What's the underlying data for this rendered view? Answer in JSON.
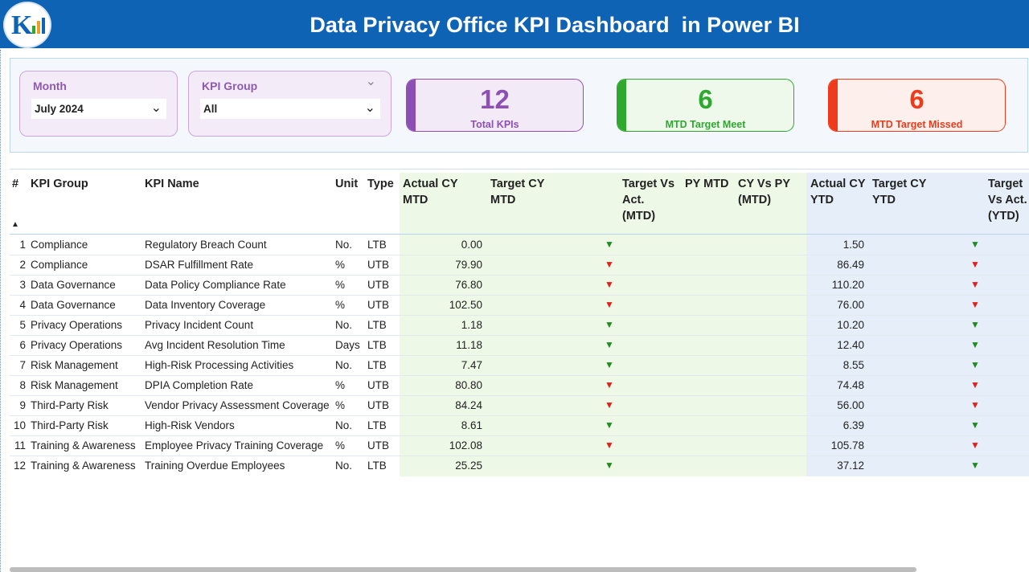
{
  "header": {
    "title": "Data Privacy Office KPI Dashboard  in Power BI"
  },
  "filters": [
    {
      "label": "Month",
      "value": "July 2024"
    },
    {
      "label": "KPI Group",
      "value": "All"
    }
  ],
  "cards": [
    {
      "value": 12,
      "label": "Total KPIs",
      "color": "#8e4fb5",
      "bg": "#f3eaf8"
    },
    {
      "value": 6,
      "label": "MTD Target Meet",
      "color": "#2fa82f",
      "bg": "#eef9ec"
    },
    {
      "value": 6,
      "label": "MTD Target Missed",
      "color": "#ee3b1c",
      "bg": "#fdf0ec"
    }
  ],
  "table": {
    "columns": [
      "#",
      "KPI Group",
      "KPI Name",
      "Unit",
      "Type",
      "Actual CY MTD",
      "Target CY MTD",
      "Target Vs Act. (MTD)",
      "PY MTD",
      "CY Vs PY (MTD)",
      "Actual CY YTD",
      "Target CY YTD",
      "Target Vs Act. (YTD)"
    ],
    "rows": [
      {
        "n": 1,
        "group": "Compliance",
        "name": "Regulatory Breach Count",
        "unit": "No.",
        "type": "LTB",
        "actual_mtd": "0.00",
        "mtd_arrow": {
          "symbol": "▼",
          "color": "#1e8c1e"
        },
        "actual_ytd": "1.50",
        "ytd_arrow": {
          "symbol": "▼",
          "color": "#1e8c1e"
        }
      },
      {
        "n": 2,
        "group": "Compliance",
        "name": "DSAR Fulfillment Rate",
        "unit": "%",
        "type": "UTB",
        "actual_mtd": "79.90",
        "mtd_arrow": {
          "symbol": "▼",
          "color": "#e0201a"
        },
        "actual_ytd": "86.49",
        "ytd_arrow": {
          "symbol": "▼",
          "color": "#e0201a"
        }
      },
      {
        "n": 3,
        "group": "Data Governance",
        "name": "Data Policy Compliance Rate",
        "unit": "%",
        "type": "UTB",
        "actual_mtd": "76.80",
        "mtd_arrow": {
          "symbol": "▼",
          "color": "#e0201a"
        },
        "actual_ytd": "110.20",
        "ytd_arrow": {
          "symbol": "▼",
          "color": "#e0201a"
        }
      },
      {
        "n": 4,
        "group": "Data Governance",
        "name": "Data Inventory Coverage",
        "unit": "%",
        "type": "UTB",
        "actual_mtd": "102.50",
        "mtd_arrow": {
          "symbol": "▼",
          "color": "#e0201a"
        },
        "actual_ytd": "76.00",
        "ytd_arrow": {
          "symbol": "▼",
          "color": "#e0201a"
        }
      },
      {
        "n": 5,
        "group": "Privacy Operations",
        "name": "Privacy Incident Count",
        "unit": "No.",
        "type": "LTB",
        "actual_mtd": "1.18",
        "mtd_arrow": {
          "symbol": "▼",
          "color": "#1e8c1e"
        },
        "actual_ytd": "10.20",
        "ytd_arrow": {
          "symbol": "▼",
          "color": "#1e8c1e"
        }
      },
      {
        "n": 6,
        "group": "Privacy Operations",
        "name": "Avg Incident Resolution Time",
        "unit": "Days",
        "type": "LTB",
        "actual_mtd": "11.18",
        "mtd_arrow": {
          "symbol": "▼",
          "color": "#1e8c1e"
        },
        "actual_ytd": "12.40",
        "ytd_arrow": {
          "symbol": "▼",
          "color": "#1e8c1e"
        }
      },
      {
        "n": 7,
        "group": "Risk Management",
        "name": "High-Risk Processing Activities",
        "unit": "No.",
        "type": "LTB",
        "actual_mtd": "7.47",
        "mtd_arrow": {
          "symbol": "▼",
          "color": "#1e8c1e"
        },
        "actual_ytd": "8.55",
        "ytd_arrow": {
          "symbol": "▼",
          "color": "#1e8c1e"
        }
      },
      {
        "n": 8,
        "group": "Risk Management",
        "name": "DPIA Completion Rate",
        "unit": "%",
        "type": "UTB",
        "actual_mtd": "80.80",
        "mtd_arrow": {
          "symbol": "▼",
          "color": "#e0201a"
        },
        "actual_ytd": "74.48",
        "ytd_arrow": {
          "symbol": "▼",
          "color": "#e0201a"
        }
      },
      {
        "n": 9,
        "group": "Third-Party Risk",
        "name": "Vendor Privacy Assessment Coverage",
        "unit": "%",
        "type": "UTB",
        "actual_mtd": "84.24",
        "mtd_arrow": {
          "symbol": "▼",
          "color": "#e0201a"
        },
        "actual_ytd": "56.00",
        "ytd_arrow": {
          "symbol": "▼",
          "color": "#e0201a"
        }
      },
      {
        "n": 10,
        "group": "Third-Party Risk",
        "name": "High-Risk Vendors",
        "unit": "No.",
        "type": "LTB",
        "actual_mtd": "8.61",
        "mtd_arrow": {
          "symbol": "▼",
          "color": "#1e8c1e"
        },
        "actual_ytd": "6.39",
        "ytd_arrow": {
          "symbol": "▼",
          "color": "#1e8c1e"
        }
      },
      {
        "n": 11,
        "group": "Training & Awareness",
        "name": "Employee Privacy Training Coverage",
        "unit": "%",
        "type": "UTB",
        "actual_mtd": "102.08",
        "mtd_arrow": {
          "symbol": "▼",
          "color": "#e0201a"
        },
        "actual_ytd": "105.78",
        "ytd_arrow": {
          "symbol": "▼",
          "color": "#e0201a"
        }
      },
      {
        "n": 12,
        "group": "Training & Awareness",
        "name": "Training Overdue Employees",
        "unit": "No.",
        "type": "LTB",
        "actual_mtd": "25.25",
        "mtd_arrow": {
          "symbol": "▼",
          "color": "#1e8c1e"
        },
        "actual_ytd": "37.12",
        "ytd_arrow": {
          "symbol": "▼",
          "color": "#1e8c1e"
        }
      }
    ]
  }
}
